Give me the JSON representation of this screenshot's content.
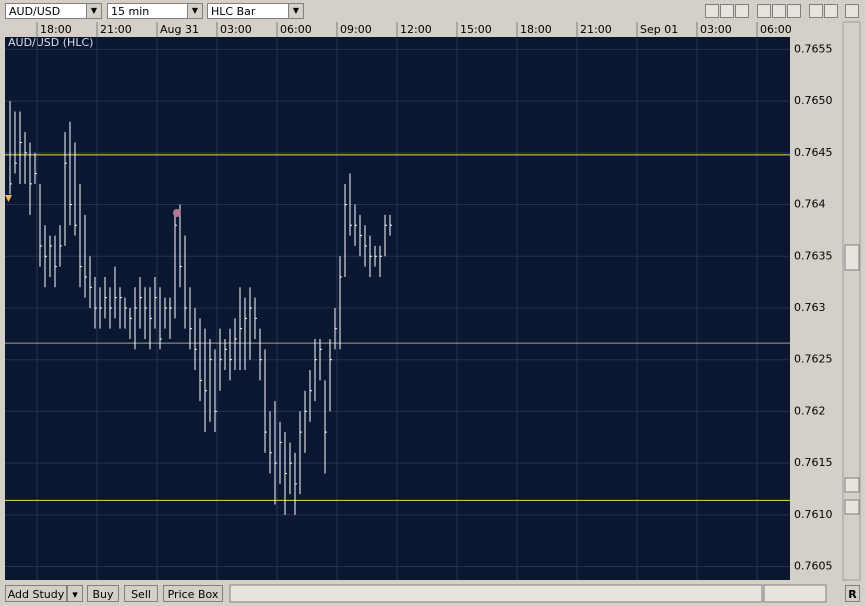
{
  "toolbar": {
    "symbol": "AUD/USD",
    "interval": "15 min",
    "chart_style": "HLC Bar"
  },
  "bottom_bar": {
    "buttons": [
      "Add Study",
      "Buy",
      "Sell",
      "Price Box"
    ],
    "right_button": "R"
  },
  "chart_data": {
    "type": "hlc",
    "title": "AUD/USD (HLC)",
    "color": "#ffffff",
    "x": [
      0,
      1,
      2,
      3,
      4,
      5,
      6,
      7,
      8,
      9,
      10,
      11,
      12,
      13,
      14,
      15,
      16,
      17,
      18,
      19,
      20,
      21,
      22,
      23,
      24,
      25,
      26,
      27,
      28,
      29,
      30,
      31,
      32,
      33,
      34,
      35,
      36,
      37,
      38,
      39,
      40,
      41,
      42,
      43,
      44,
      45,
      46,
      47,
      48,
      49,
      50,
      51,
      52,
      53,
      54,
      55,
      56,
      57,
      58,
      59,
      60,
      61,
      62,
      63,
      64,
      65,
      66,
      67,
      68,
      69,
      70,
      71,
      72,
      73,
      74,
      75,
      76
    ],
    "high": [
      0.765,
      0.7649,
      0.7649,
      0.7647,
      0.7646,
      0.7645,
      0.7642,
      0.7638,
      0.7637,
      0.7637,
      0.7638,
      0.7647,
      0.7648,
      0.7646,
      0.7642,
      0.7639,
      0.7635,
      0.7633,
      0.7632,
      0.7633,
      0.7632,
      0.7634,
      0.7632,
      0.7631,
      0.763,
      0.7632,
      0.7633,
      0.7632,
      0.7632,
      0.7633,
      0.7632,
      0.7631,
      0.7631,
      0.7639,
      0.764,
      0.7637,
      0.7632,
      0.763,
      0.7629,
      0.7628,
      0.7627,
      0.7626,
      0.7628,
      0.7627,
      0.7628,
      0.7629,
      0.7632,
      0.7631,
      0.7632,
      0.7631,
      0.7628,
      0.7626,
      0.762,
      0.7621,
      0.7619,
      0.7618,
      0.7617,
      0.7616,
      0.762,
      0.7622,
      0.7624,
      0.7627,
      0.7627,
      0.7623,
      0.7627,
      0.763,
      0.7635,
      0.7642,
      0.7643,
      0.764,
      0.7639,
      0.7638,
      0.7637,
      0.7636,
      0.7636,
      0.7639,
      0.7639
    ],
    "low": [
      0.7641,
      0.7643,
      0.7642,
      0.7642,
      0.7639,
      0.7642,
      0.7634,
      0.7632,
      0.7633,
      0.7632,
      0.7634,
      0.7636,
      0.7638,
      0.7637,
      0.7632,
      0.7631,
      0.763,
      0.7628,
      0.7628,
      0.7629,
      0.7628,
      0.7629,
      0.7628,
      0.7628,
      0.7627,
      0.7626,
      0.7628,
      0.7627,
      0.7626,
      0.7628,
      0.7626,
      0.7628,
      0.7627,
      0.7629,
      0.7632,
      0.7628,
      0.7626,
      0.7624,
      0.7621,
      0.7618,
      0.7619,
      0.7618,
      0.7622,
      0.7624,
      0.7623,
      0.7624,
      0.7624,
      0.7624,
      0.7625,
      0.7627,
      0.7623,
      0.7616,
      0.7614,
      0.7611,
      0.7613,
      0.761,
      0.7612,
      0.761,
      0.7612,
      0.7616,
      0.7619,
      0.7621,
      0.7623,
      0.7614,
      0.762,
      0.7626,
      0.7626,
      0.7633,
      0.7637,
      0.7636,
      0.7635,
      0.7634,
      0.7633,
      0.7634,
      0.7633,
      0.7635,
      0.7637
    ],
    "close": [
      0.7642,
      0.7644,
      0.7646,
      0.7645,
      0.7642,
      0.7643,
      0.7636,
      0.7635,
      0.7636,
      0.7634,
      0.7636,
      0.7644,
      0.764,
      0.7638,
      0.7634,
      0.7633,
      0.7632,
      0.763,
      0.763,
      0.7631,
      0.763,
      0.7631,
      0.7631,
      0.763,
      0.7629,
      0.763,
      0.7631,
      0.763,
      0.7629,
      0.7631,
      0.7627,
      0.763,
      0.763,
      0.7638,
      0.7634,
      0.763,
      0.7628,
      0.7626,
      0.7623,
      0.7622,
      0.7625,
      0.762,
      0.7625,
      0.7626,
      0.7625,
      0.7627,
      0.7628,
      0.7629,
      0.763,
      0.7629,
      0.7625,
      0.7618,
      0.7616,
      0.7615,
      0.7617,
      0.7614,
      0.7615,
      0.7613,
      0.7618,
      0.762,
      0.7622,
      0.7625,
      0.7626,
      0.7618,
      0.7625,
      0.7628,
      0.7633,
      0.764,
      0.7638,
      0.7638,
      0.7637,
      0.7636,
      0.7635,
      0.7635,
      0.7635,
      0.7638,
      0.7638
    ],
    "hlines": [
      {
        "value": 0.76448,
        "color": "#e8e040"
      },
      {
        "value": 0.76266,
        "color": "#a0a090"
      },
      {
        "value": 0.76114,
        "color": "#e8e040"
      }
    ],
    "xlim": [
      -1,
      156
    ],
    "xticks": [
      {
        "value": 6,
        "label": "18:00"
      },
      {
        "value": 18,
        "label": "21:00"
      },
      {
        "value": 30,
        "label": "Aug 31"
      },
      {
        "value": 42,
        "label": "03:00"
      },
      {
        "value": 54,
        "label": "06:00"
      },
      {
        "value": 66,
        "label": "09:00"
      },
      {
        "value": 78,
        "label": "12:00"
      },
      {
        "value": 90,
        "label": "15:00"
      },
      {
        "value": 102,
        "label": "18:00"
      },
      {
        "value": 114,
        "label": "21:00"
      },
      {
        "value": 126,
        "label": "Sep 01"
      },
      {
        "value": 138,
        "label": "03:00"
      },
      {
        "value": 150,
        "label": "06:00"
      }
    ],
    "ylim": [
      0.76037,
      0.76562
    ],
    "yticks": [
      0.7605,
      {
        "value": 0.761,
        "label": "0.7610"
      },
      0.7615,
      0.762,
      0.7625,
      0.763,
      0.7635,
      0.764,
      0.7645,
      {
        "value": 0.765,
        "label": "0.7650"
      },
      0.7655
    ],
    "grid": true
  }
}
